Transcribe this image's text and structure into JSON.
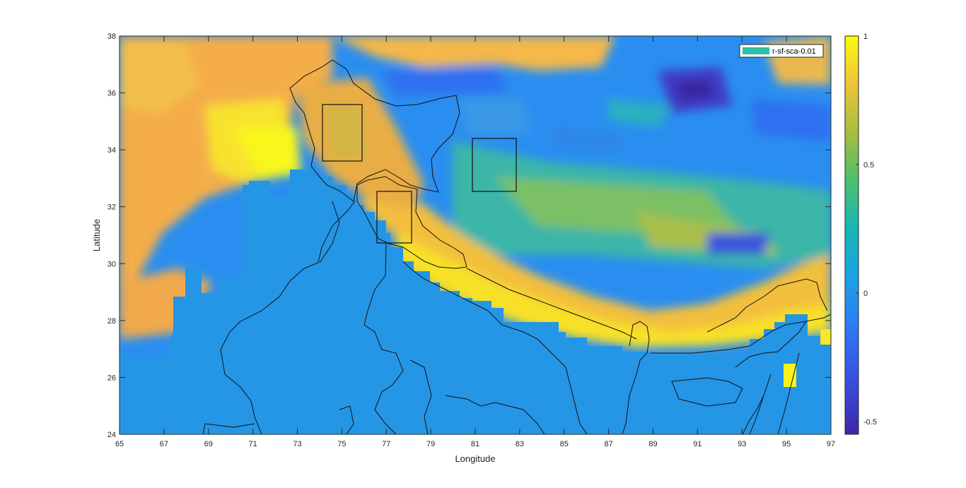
{
  "figure": {
    "xlabel": "Longitude",
    "ylabel": "Latitude",
    "x_ticks": [
      "65",
      "67",
      "69",
      "71",
      "73",
      "75",
      "77",
      "79",
      "81",
      "83",
      "85",
      "87",
      "89",
      "91",
      "93",
      "95",
      "97"
    ],
    "y_ticks": [
      "38",
      "36",
      "34",
      "32",
      "30",
      "28",
      "26",
      "24"
    ],
    "xlim": [
      65,
      97
    ],
    "ylim": [
      24,
      38
    ],
    "legend": {
      "label": "r-sf-sca-0.01",
      "swatch_color": "#2ebfa3",
      "placement": "top-right"
    },
    "colorbar": {
      "ticks": [
        "1",
        "0.5",
        "0",
        "-0.5"
      ],
      "range": [
        -0.55,
        1
      ],
      "colormap": "parula",
      "colors": [
        "#3e26a8",
        "#2d6ffa",
        "#1fa0e8",
        "#18b7a6",
        "#63c163",
        "#c2ba3d",
        "#f9c534",
        "#f9fb0e"
      ]
    },
    "study_boxes": [
      {
        "name": "box-karakoram",
        "lon": [
          74.2,
          76.0
        ],
        "lat": [
          33.6,
          35.6
        ]
      },
      {
        "name": "box-central",
        "lon": [
          81.0,
          82.9
        ],
        "lat": [
          32.5,
          34.4
        ]
      },
      {
        "name": "box-himachal",
        "lon": [
          76.6,
          78.1
        ],
        "lat": [
          30.7,
          32.5
        ]
      }
    ],
    "masked_region_color": "#2596e6"
  }
}
